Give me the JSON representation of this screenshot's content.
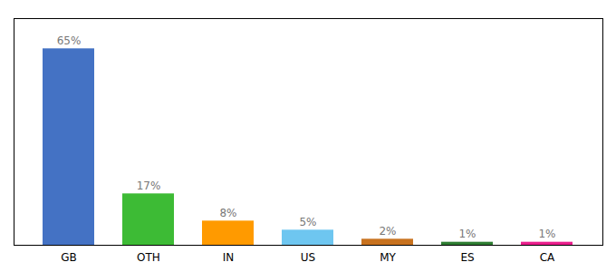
{
  "chart_data": {
    "type": "bar",
    "categories": [
      "GB",
      "OTH",
      "IN",
      "US",
      "MY",
      "ES",
      "CA"
    ],
    "values": [
      65,
      17,
      8,
      5,
      2,
      1,
      1
    ],
    "value_labels": [
      "65%",
      "17%",
      "8%",
      "5%",
      "2%",
      "1%",
      "1%"
    ],
    "colors": [
      "#4472c4",
      "#3dbb35",
      "#ff9a00",
      "#6ec6f0",
      "#c8721e",
      "#2e7d32",
      "#e91e8c"
    ],
    "ylim": [
      0,
      75
    ],
    "data_labels": true,
    "tick_labels": "x"
  }
}
